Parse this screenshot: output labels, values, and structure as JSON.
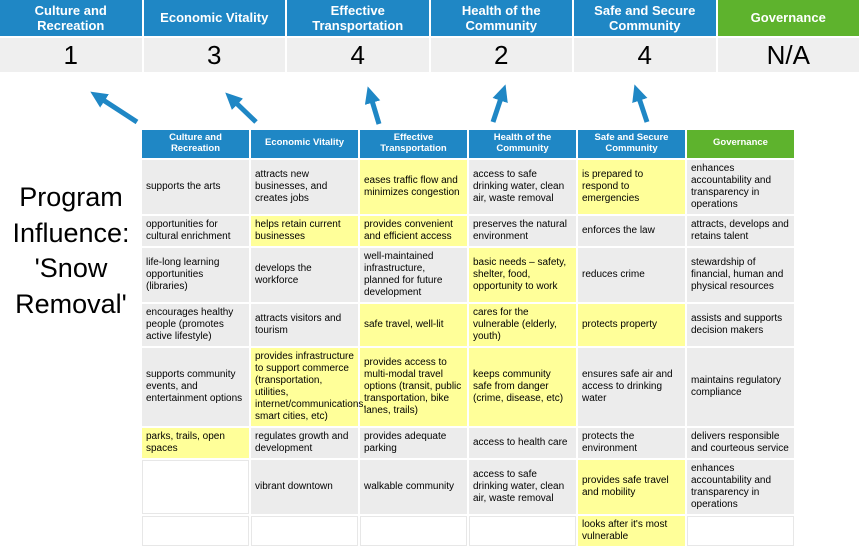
{
  "slide": {
    "title": "Program Influence: 'Snow Removal'"
  },
  "colors": {
    "header_blue": "#1f87c5",
    "header_green": "#5eb32d",
    "score_band_gray": "#efefef",
    "cell_gray": "#ececec",
    "highlight_yellow": "#ffff99",
    "arrow_blue": "#1f87c5"
  },
  "scoreboard": {
    "columns": [
      {
        "label": "Culture and Recreation",
        "score": "1"
      },
      {
        "label": "Economic Vitality",
        "score": "3"
      },
      {
        "label": "Effective Transportation",
        "score": "4"
      },
      {
        "label": "Health of the Community",
        "score": "2"
      },
      {
        "label": "Safe and Secure Community",
        "score": "4"
      },
      {
        "label": "Governance",
        "score": "N/A"
      }
    ]
  },
  "matrix": {
    "headers": [
      "Culture and Recreation",
      "Economic Vitality",
      "Effective Transportation",
      "Health of the Community",
      "Safe and Secure Community",
      "Governance"
    ],
    "rows": [
      [
        {
          "text": "supports the arts",
          "hl": false
        },
        {
          "text": "attracts new businesses, and creates jobs",
          "hl": false
        },
        {
          "text": "eases traffic flow and minimizes congestion",
          "hl": true
        },
        {
          "text": "access to safe drinking water, clean air, waste removal",
          "hl": false
        },
        {
          "text": "is prepared to respond to emergencies",
          "hl": true
        },
        {
          "text": "enhances accountability and transparency in operations",
          "hl": false
        }
      ],
      [
        {
          "text": "opportunities for cultural enrichment",
          "hl": false
        },
        {
          "text": "helps retain current businesses",
          "hl": true
        },
        {
          "text": "provides convenient and efficient access",
          "hl": true
        },
        {
          "text": "preserves the natural environment",
          "hl": false
        },
        {
          "text": "enforces the law",
          "hl": false
        },
        {
          "text": "attracts, develops and retains talent",
          "hl": false
        }
      ],
      [
        {
          "text": "life-long learning opportunities (libraries)",
          "hl": false
        },
        {
          "text": "develops the workforce",
          "hl": false
        },
        {
          "text": "well-maintained infrastructure, planned for future development",
          "hl": false
        },
        {
          "text": "basic needs – safety, shelter, food, opportunity to work",
          "hl": true
        },
        {
          "text": "reduces crime",
          "hl": false
        },
        {
          "text": "stewardship of financial, human and physical resources",
          "hl": false
        }
      ],
      [
        {
          "text": "encourages healthy people (promotes active lifestyle)",
          "hl": false
        },
        {
          "text": "attracts visitors and tourism",
          "hl": false
        },
        {
          "text": "safe travel, well-lit",
          "hl": true
        },
        {
          "text": "cares for the vulnerable (elderly, youth)",
          "hl": true
        },
        {
          "text": "protects property",
          "hl": true
        },
        {
          "text": "assists and supports decision makers",
          "hl": false
        }
      ],
      [
        {
          "text": "supports community events, and entertainment options",
          "hl": false
        },
        {
          "text": "provides infrastructure to support commerce (transportation, utilities, internet/communications, smart cities, etc)",
          "hl": true
        },
        {
          "text": "provides access to multi-modal travel options (transit, public transportation, bike lanes, trails)",
          "hl": true
        },
        {
          "text": "keeps community safe from danger (crime, disease, etc)",
          "hl": true
        },
        {
          "text": "ensures safe air and access to drinking water",
          "hl": false
        },
        {
          "text": "maintains regulatory compliance",
          "hl": false
        }
      ],
      [
        {
          "text": "parks, trails, open spaces",
          "hl": true
        },
        {
          "text": "regulates growth and development",
          "hl": false
        },
        {
          "text": "provides adequate parking",
          "hl": false
        },
        {
          "text": "access to health care",
          "hl": false
        },
        {
          "text": "protects the environment",
          "hl": false
        },
        {
          "text": "delivers responsible and courteous service",
          "hl": false
        }
      ],
      [
        {
          "text": "",
          "hl": false
        },
        {
          "text": "vibrant downtown",
          "hl": false
        },
        {
          "text": "walkable community",
          "hl": false
        },
        {
          "text": "access to safe drinking water, clean air, waste removal",
          "hl": false
        },
        {
          "text": "provides safe travel and mobility",
          "hl": true
        },
        {
          "text": "enhances accountability and transparency in operations",
          "hl": false
        }
      ],
      [
        {
          "text": "",
          "hl": false
        },
        {
          "text": "",
          "hl": false
        },
        {
          "text": "",
          "hl": false
        },
        {
          "text": "",
          "hl": false
        },
        {
          "text": "looks after it's most vulnerable",
          "hl": true
        },
        {
          "text": "",
          "hl": false
        }
      ]
    ]
  }
}
